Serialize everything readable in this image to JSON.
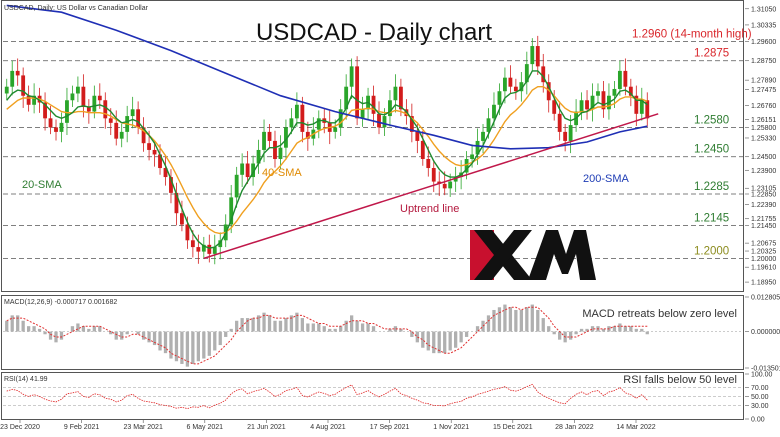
{
  "chart_data": {
    "type": "candlestick",
    "title": "USDCAD - Daily chart",
    "header_label": "USDCAD, Daily:  US Dollar vs Canadian Dollar",
    "x_tick_labels": [
      "23 Dec 2020",
      "9 Feb 2021",
      "23 Mar 2021",
      "6 May 2021",
      "21 Jun 2021",
      "4 Aug 2021",
      "17 Sep 2021",
      "1 Nov 2021",
      "15 Dec 2021",
      "28 Jan 2022",
      "14 Mar 2022"
    ],
    "price_axis": {
      "ylim": [
        1.186,
        1.3135
      ],
      "ticks": [
        {
          "label": "1.31050",
          "value": 1.3105
        },
        {
          "label": "1.30335",
          "value": 1.30335
        },
        {
          "label": "1.29600",
          "value": 1.296
        },
        {
          "label": "1.28750",
          "value": 1.2875
        },
        {
          "label": "1.27890",
          "value": 1.2789
        },
        {
          "label": "1.27475",
          "value": 1.27475
        },
        {
          "label": "1.26760",
          "value": 1.2676
        },
        {
          "label": "1.26151",
          "value": 1.26151
        },
        {
          "label": "1.25800",
          "value": 1.258
        },
        {
          "label": "1.25330",
          "value": 1.2533
        },
        {
          "label": "1.24500",
          "value": 1.245
        },
        {
          "label": "1.23900",
          "value": 1.239
        },
        {
          "label": "1.23105",
          "value": 1.23105
        },
        {
          "label": "1.22850",
          "value": 1.2285
        },
        {
          "label": "1.22390",
          "value": 1.2239
        },
        {
          "label": "1.21755",
          "value": 1.21755
        },
        {
          "label": "1.21450",
          "value": 1.2145
        },
        {
          "label": "1.20675",
          "value": 1.20675
        },
        {
          "label": "1.20325",
          "value": 1.20325
        },
        {
          "label": "1.20000",
          "value": 1.2
        },
        {
          "label": "1.19610",
          "value": 1.1961
        },
        {
          "label": "1.18950",
          "value": 1.1895
        }
      ]
    },
    "levels": [
      {
        "label": "1.2960 (14-month high)",
        "value": 1.296,
        "color": "#d9262b"
      },
      {
        "label": "1.2875",
        "value": 1.2875,
        "color": "#d9262b"
      },
      {
        "label": "1.2580",
        "value": 1.258,
        "color": "#2f7d32"
      },
      {
        "label": "1.2450",
        "value": 1.245,
        "color": "#2f7d32"
      },
      {
        "label": "1.2285",
        "value": 1.2285,
        "color": "#2f7d32"
      },
      {
        "label": "1.2145",
        "value": 1.2145,
        "color": "#2f7d32"
      },
      {
        "label": "1.2000",
        "value": 1.2,
        "color": "#8c8c1e"
      }
    ],
    "annotations": {
      "sma20": "20-SMA",
      "sma40": "40-SMA",
      "sma200": "200-SMA",
      "uptrend": "Uptrend line",
      "macd_note": "MACD retreats below zero level",
      "rsi_note": "RSI falls below 50 level"
    },
    "price_series": [
      1.276,
      1.283,
      1.281,
      1.272,
      1.268,
      1.272,
      1.269,
      1.262,
      1.258,
      1.256,
      1.26,
      1.27,
      1.273,
      1.276,
      1.267,
      1.265,
      1.272,
      1.27,
      1.262,
      1.26,
      1.253,
      1.256,
      1.263,
      1.266,
      1.258,
      1.251,
      1.248,
      1.246,
      1.24,
      1.236,
      1.229,
      1.22,
      1.215,
      1.208,
      1.205,
      1.203,
      1.206,
      1.202,
      1.205,
      1.208,
      1.215,
      1.227,
      1.237,
      1.242,
      1.236,
      1.242,
      1.248,
      1.256,
      1.252,
      1.244,
      1.249,
      1.258,
      1.262,
      1.268,
      1.256,
      1.253,
      1.257,
      1.262,
      1.26,
      1.256,
      1.258,
      1.266,
      1.276,
      1.285,
      1.262,
      1.266,
      1.272,
      1.264,
      1.258,
      1.263,
      1.27,
      1.276,
      1.266,
      1.263,
      1.256,
      1.252,
      1.244,
      1.24,
      1.234,
      1.233,
      1.231,
      1.234,
      1.236,
      1.238,
      1.244,
      1.246,
      1.252,
      1.256,
      1.262,
      1.268,
      1.274,
      1.28,
      1.276,
      1.274,
      1.278,
      1.286,
      1.294,
      1.285,
      1.278,
      1.27,
      1.264,
      1.256,
      1.252,
      1.259,
      1.265,
      1.27,
      1.266,
      1.272,
      1.274,
      1.266,
      1.272,
      1.275,
      1.283,
      1.276,
      1.272,
      1.264,
      1.27,
      1.262
    ],
    "sma20": [
      1.27,
      1.273,
      1.2745,
      1.274,
      1.272,
      1.2715,
      1.27,
      1.268,
      1.2655,
      1.263,
      1.262,
      1.263,
      1.2645,
      1.267,
      1.2675,
      1.267,
      1.2675,
      1.268,
      1.267,
      1.265,
      1.262,
      1.26,
      1.2605,
      1.2615,
      1.2605,
      1.2575,
      1.2545,
      1.251,
      1.246,
      1.241,
      1.235,
      1.2285,
      1.222,
      1.216,
      1.211,
      1.2075,
      1.2055,
      1.2045,
      1.205,
      1.207,
      1.211,
      1.217,
      1.224,
      1.23,
      1.234,
      1.238,
      1.242,
      1.2465,
      1.249,
      1.249,
      1.25,
      1.2525,
      1.256,
      1.26,
      1.26,
      1.259,
      1.2595,
      1.261,
      1.261,
      1.26,
      1.26,
      1.2625,
      1.2665,
      1.272,
      1.27,
      1.2685,
      1.269,
      1.267,
      1.264,
      1.2635,
      1.265,
      1.268,
      1.267,
      1.265,
      1.2615,
      1.258,
      1.253,
      1.248,
      1.243,
      1.2395,
      1.237,
      1.236,
      1.236,
      1.237,
      1.2395,
      1.242,
      1.246,
      1.25,
      1.255,
      1.2605,
      1.266,
      1.271,
      1.273,
      1.2735,
      1.275,
      1.2785,
      1.283,
      1.283,
      1.2805,
      1.276,
      1.271,
      1.266,
      1.262,
      1.261,
      1.262,
      1.2645,
      1.265,
      1.267,
      1.269,
      1.268,
      1.269,
      1.2705,
      1.274,
      1.2745,
      1.273,
      1.27,
      1.27,
      1.268
    ],
    "sma40": [
      1.266,
      1.268,
      1.27,
      1.271,
      1.271,
      1.271,
      1.2705,
      1.2695,
      1.268,
      1.2665,
      1.265,
      1.2645,
      1.2645,
      1.265,
      1.265,
      1.2645,
      1.2645,
      1.2645,
      1.264,
      1.263,
      1.2615,
      1.26,
      1.2595,
      1.259,
      1.258,
      1.2565,
      1.2545,
      1.252,
      1.249,
      1.2455,
      1.2415,
      1.237,
      1.232,
      1.227,
      1.2225,
      1.2185,
      1.2155,
      1.213,
      1.2115,
      1.211,
      1.2115,
      1.2135,
      1.2165,
      1.22,
      1.223,
      1.226,
      1.2295,
      1.2335,
      1.2365,
      1.2385,
      1.241,
      1.244,
      1.2475,
      1.251,
      1.2525,
      1.2535,
      1.255,
      1.2565,
      1.2575,
      1.258,
      1.2585,
      1.26,
      1.2625,
      1.2655,
      1.266,
      1.266,
      1.2665,
      1.266,
      1.265,
      1.2645,
      1.2645,
      1.2655,
      1.265,
      1.264,
      1.262,
      1.26,
      1.257,
      1.254,
      1.2505,
      1.2475,
      1.245,
      1.243,
      1.2415,
      1.241,
      1.2415,
      1.2425,
      1.244,
      1.246,
      1.249,
      1.2525,
      1.2565,
      1.2605,
      1.2635,
      1.2655,
      1.268,
      1.271,
      1.2745,
      1.276,
      1.276,
      1.2745,
      1.272,
      1.269,
      1.2665,
      1.265,
      1.2645,
      1.265,
      1.265,
      1.266,
      1.267,
      1.267,
      1.2675,
      1.2685,
      1.2705,
      1.2715,
      1.2715,
      1.2705,
      1.2705,
      1.2695
    ],
    "sma200_points": [
      [
        0,
        1.312
      ],
      [
        10,
        1.309
      ],
      [
        20,
        1.301
      ],
      [
        30,
        1.292
      ],
      [
        40,
        1.282
      ],
      [
        50,
        1.272
      ],
      [
        60,
        1.265
      ],
      [
        70,
        1.259
      ],
      [
        78,
        1.2545
      ],
      [
        85,
        1.25
      ],
      [
        92,
        1.2485
      ],
      [
        99,
        1.249
      ],
      [
        106,
        1.2515
      ],
      [
        112,
        1.256
      ],
      [
        117,
        1.2585
      ]
    ],
    "uptrend_from": [
      36,
      1.2
    ],
    "uptrend_to": [
      119,
      1.264
    ],
    "macd_axis": {
      "ticks": [
        {
          "label": "0.012805",
          "value": 0.012805
        },
        {
          "label": "0.000000",
          "value": 0
        },
        {
          "label": "-0.013501",
          "value": -0.013501
        }
      ]
    },
    "macd_header": "MACD(12,26,9) -0.000717 0.001682",
    "macd_hist": [
      0.004,
      0.006,
      0.006,
      0.004,
      0.002,
      0.002,
      0.001,
      -0.001,
      -0.003,
      -0.004,
      -0.003,
      0.0,
      0.002,
      0.003,
      0.002,
      0.001,
      0.002,
      0.002,
      0.0,
      -0.001,
      -0.003,
      -0.003,
      -0.001,
      0.0,
      -0.001,
      -0.003,
      -0.004,
      -0.005,
      -0.007,
      -0.008,
      -0.01,
      -0.011,
      -0.012,
      -0.013,
      -0.012,
      -0.011,
      -0.01,
      -0.009,
      -0.007,
      -0.005,
      -0.002,
      0.001,
      0.004,
      0.005,
      0.005,
      0.005,
      0.006,
      0.007,
      0.006,
      0.004,
      0.004,
      0.005,
      0.006,
      0.007,
      0.005,
      0.003,
      0.003,
      0.003,
      0.002,
      0.001,
      0.001,
      0.002,
      0.004,
      0.006,
      0.004,
      0.003,
      0.003,
      0.002,
      0.0,
      0.0,
      0.001,
      0.002,
      0.001,
      0.0,
      -0.002,
      -0.004,
      -0.006,
      -0.007,
      -0.008,
      -0.008,
      -0.008,
      -0.007,
      -0.006,
      -0.004,
      -0.002,
      0.0,
      0.002,
      0.004,
      0.006,
      0.008,
      0.009,
      0.01,
      0.009,
      0.008,
      0.008,
      0.009,
      0.01,
      0.008,
      0.005,
      0.002,
      -0.001,
      -0.003,
      -0.004,
      -0.003,
      -0.001,
      0.001,
      0.001,
      0.002,
      0.002,
      0.001,
      0.002,
      0.002,
      0.003,
      0.002,
      0.002,
      0.001,
      0.001,
      -0.001
    ],
    "macd_signal": [
      0.004,
      0.005,
      0.005,
      0.005,
      0.004,
      0.003,
      0.002,
      0.001,
      -0.001,
      -0.002,
      -0.002,
      -0.001,
      0.0,
      0.001,
      0.002,
      0.002,
      0.002,
      0.002,
      0.001,
      0.0,
      -0.001,
      -0.002,
      -0.002,
      -0.001,
      -0.001,
      -0.002,
      -0.003,
      -0.004,
      -0.005,
      -0.006,
      -0.008,
      -0.009,
      -0.01,
      -0.011,
      -0.012,
      -0.012,
      -0.011,
      -0.01,
      -0.009,
      -0.007,
      -0.005,
      -0.003,
      0.0,
      0.002,
      0.004,
      0.005,
      0.005,
      0.006,
      0.006,
      0.005,
      0.005,
      0.005,
      0.005,
      0.006,
      0.006,
      0.005,
      0.004,
      0.003,
      0.003,
      0.002,
      0.002,
      0.002,
      0.003,
      0.004,
      0.004,
      0.004,
      0.003,
      0.003,
      0.002,
      0.001,
      0.001,
      0.001,
      0.001,
      0.001,
      0.0,
      -0.002,
      -0.003,
      -0.005,
      -0.006,
      -0.007,
      -0.008,
      -0.008,
      -0.007,
      -0.006,
      -0.004,
      -0.002,
      0.0,
      0.002,
      0.004,
      0.006,
      0.007,
      0.008,
      0.009,
      0.009,
      0.008,
      0.009,
      0.009,
      0.009,
      0.007,
      0.005,
      0.002,
      0.0,
      -0.002,
      -0.002,
      -0.002,
      -0.001,
      0.0,
      0.001,
      0.001,
      0.001,
      0.001,
      0.002,
      0.002,
      0.002,
      0.002,
      0.002,
      0.002,
      0.002
    ],
    "rsi_axis": {
      "ticks": [
        {
          "label": "100.00",
          "value": 100
        },
        {
          "label": "70.00",
          "value": 70
        },
        {
          "label": "50.00",
          "value": 50
        },
        {
          "label": "30.00",
          "value": 30
        },
        {
          "label": "0.00",
          "value": 0
        }
      ]
    },
    "rsi_header": "RSI(14) 41.99",
    "rsi": [
      62,
      66,
      63,
      55,
      50,
      54,
      50,
      44,
      40,
      38,
      44,
      56,
      58,
      61,
      50,
      48,
      56,
      54,
      46,
      44,
      38,
      42,
      52,
      55,
      46,
      40,
      38,
      36,
      32,
      30,
      28,
      24,
      26,
      23,
      27,
      26,
      30,
      25,
      31,
      35,
      42,
      56,
      64,
      67,
      56,
      61,
      64,
      68,
      60,
      50,
      55,
      63,
      66,
      70,
      52,
      49,
      55,
      60,
      57,
      52,
      55,
      63,
      70,
      76,
      54,
      58,
      63,
      55,
      49,
      55,
      62,
      68,
      56,
      52,
      46,
      42,
      36,
      34,
      30,
      30,
      29,
      34,
      37,
      39,
      46,
      49,
      55,
      58,
      62,
      66,
      68,
      72,
      64,
      62,
      66,
      72,
      77,
      60,
      52,
      46,
      41,
      36,
      34,
      46,
      55,
      60,
      54,
      61,
      63,
      52,
      60,
      63,
      70,
      58,
      54,
      46,
      54,
      42
    ]
  }
}
